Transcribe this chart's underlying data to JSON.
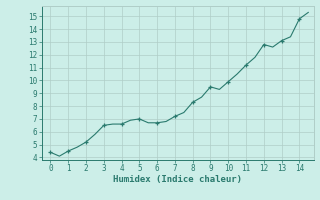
{
  "x": [
    0,
    0.5,
    1,
    1.5,
    2,
    2.5,
    3,
    3.5,
    4,
    4.5,
    5,
    5.5,
    6,
    6.5,
    7,
    7.5,
    8,
    8.5,
    9,
    9.5,
    10,
    10.5,
    11,
    11.5,
    12,
    12.5,
    13,
    13.5,
    14,
    14.5
  ],
  "y": [
    4.4,
    4.1,
    4.5,
    4.8,
    5.2,
    5.8,
    6.5,
    6.6,
    6.6,
    6.9,
    7.0,
    6.7,
    6.7,
    6.8,
    7.2,
    7.5,
    8.3,
    8.7,
    9.5,
    9.3,
    9.9,
    10.5,
    11.2,
    11.8,
    12.8,
    12.6,
    13.1,
    13.4,
    14.8,
    15.3
  ],
  "xlabel": "Humidex (Indice chaleur)",
  "line_color": "#2a7a6e",
  "bg_color": "#cceee8",
  "grid_color": "#b0cdc8",
  "tick_color": "#2a7a6e",
  "label_color": "#2a7a6e",
  "xlim": [
    -0.5,
    14.8
  ],
  "ylim": [
    3.8,
    15.8
  ],
  "xticks": [
    0,
    1,
    2,
    3,
    4,
    5,
    6,
    7,
    8,
    9,
    10,
    11,
    12,
    13,
    14
  ],
  "yticks": [
    4,
    5,
    6,
    7,
    8,
    9,
    10,
    11,
    12,
    13,
    14,
    15
  ],
  "marker_x": [
    0,
    1,
    2,
    3,
    4,
    5,
    6,
    7,
    8,
    9,
    10,
    11,
    12,
    13,
    14
  ],
  "marker_y": [
    4.4,
    4.5,
    5.2,
    6.5,
    6.6,
    7.0,
    6.7,
    7.2,
    8.3,
    9.5,
    9.9,
    11.2,
    12.8,
    13.1,
    14.8
  ]
}
